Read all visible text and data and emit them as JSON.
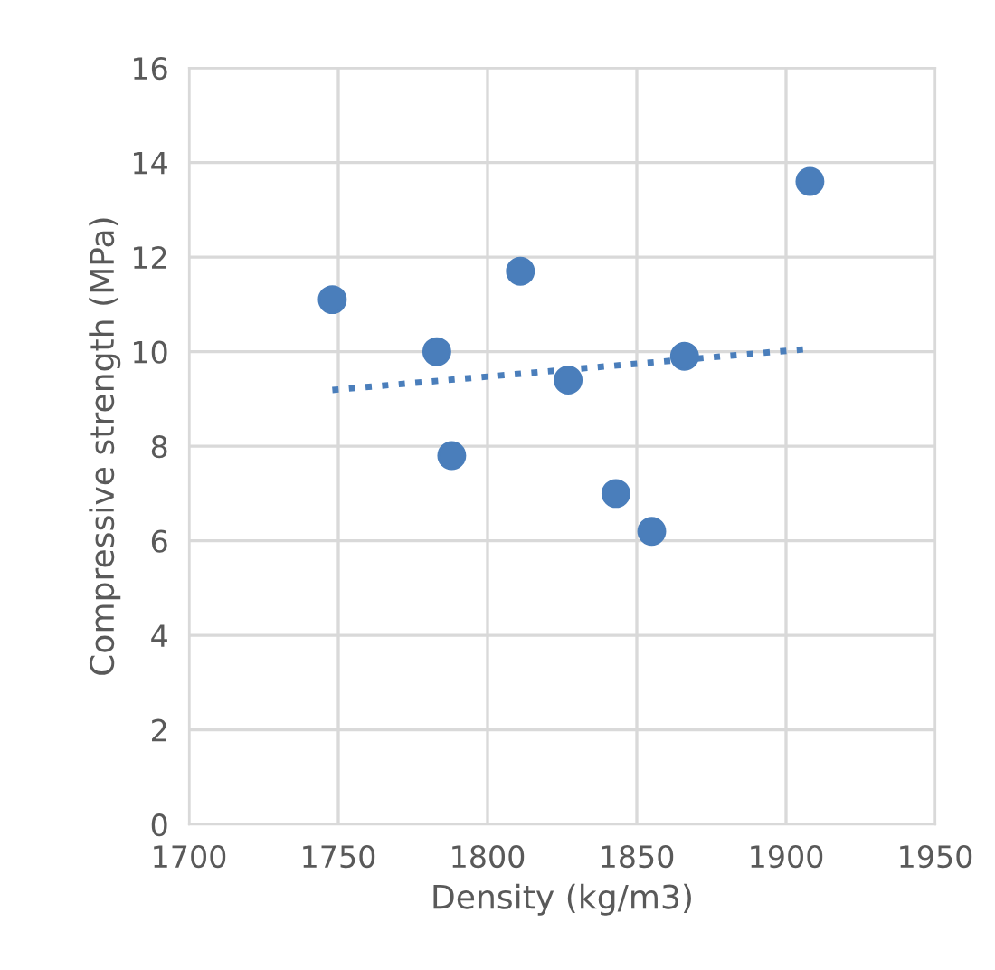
{
  "chart_data": {
    "type": "scatter",
    "xlabel": "Density (kg/m3)",
    "ylabel": "Compressive strength (MPa)",
    "xlim": [
      1700,
      1950
    ],
    "xticks": [
      1700,
      1750,
      1800,
      1850,
      1900,
      1950
    ],
    "ylim": [
      0,
      16
    ],
    "yticks": [
      0,
      2,
      4,
      6,
      8,
      10,
      12,
      14,
      16
    ],
    "grid": true,
    "legend": false,
    "marker": "circle",
    "series": [
      {
        "color": "#4a7ebb",
        "x": [
          1748,
          1783,
          1788,
          1811,
          1827,
          1843,
          1855,
          1866,
          1908
        ],
        "values": [
          11.1,
          10.0,
          7.8,
          11.7,
          9.4,
          7.0,
          6.2,
          9.9,
          13.6
        ]
      },
      {
        "type": "line",
        "color": "#4a7ebb",
        "line_style": "dotted",
        "marker": "none",
        "x": [
          1748,
          1908
        ],
        "values": [
          9.19,
          10.06
        ]
      }
    ]
  }
}
